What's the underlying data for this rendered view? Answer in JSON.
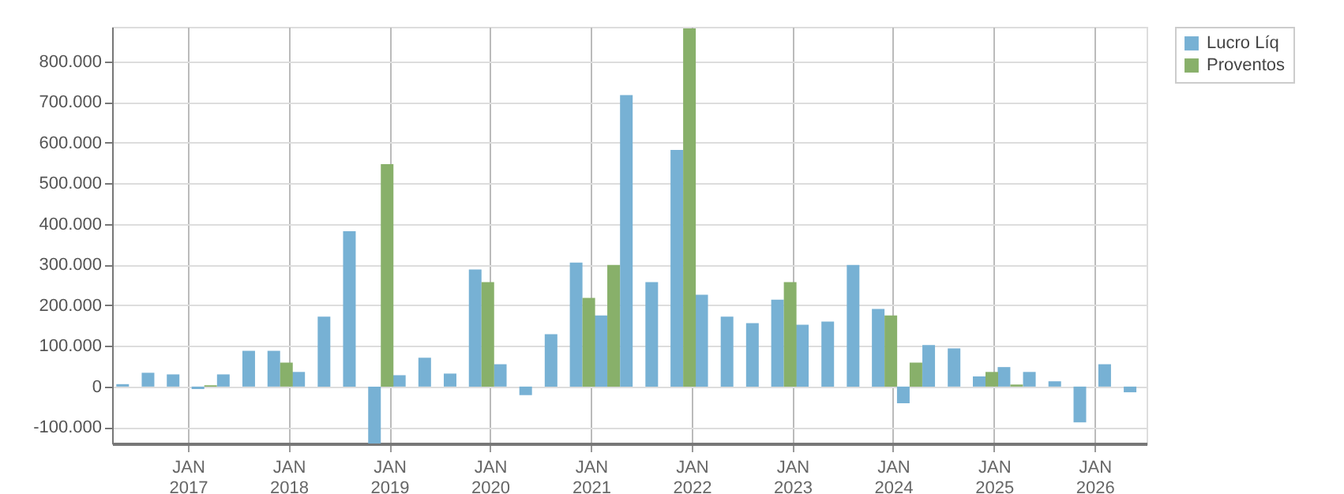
{
  "chart_data": {
    "type": "bar",
    "x": [
      "2016-06",
      "2016-09",
      "2016-12",
      "2017-03",
      "2017-06",
      "2017-09",
      "2017-12",
      "2018-03",
      "2018-06",
      "2018-09",
      "2018-12",
      "2019-03",
      "2019-06",
      "2019-09",
      "2019-12",
      "2020-03",
      "2020-06",
      "2020-09",
      "2020-12",
      "2021-03",
      "2021-06",
      "2021-09",
      "2021-12",
      "2022-03",
      "2022-06",
      "2022-09",
      "2022-12",
      "2023-03",
      "2023-06",
      "2023-09",
      "2023-12",
      "2024-03",
      "2024-06",
      "2024-09",
      "2024-12",
      "2025-03",
      "2025-06",
      "2025-09",
      "2025-12",
      "2026-03",
      "2026-06"
    ],
    "series": [
      {
        "name": "Lucro Líq",
        "color": "#77b1d4",
        "values": [
          6000,
          34000,
          30000,
          -6000,
          30000,
          88000,
          88000,
          36000,
          172000,
          382000,
          -140000,
          28000,
          71000,
          32000,
          288000,
          55000,
          -21000,
          129000,
          305000,
          175000,
          717000,
          257000,
          582000,
          226000,
          172000,
          156000,
          214000,
          152000,
          160000,
          299000,
          191000,
          -41000,
          102000,
          94000,
          25000,
          48000,
          36000,
          13000,
          -88000,
          55000,
          -14000
        ]
      },
      {
        "name": "Proventos",
        "color": "#88b06a",
        "values": [
          0,
          0,
          0,
          3000,
          0,
          0,
          59000,
          0,
          0,
          0,
          547000,
          0,
          0,
          0,
          257000,
          0,
          0,
          0,
          218000,
          299000,
          0,
          0,
          881000,
          0,
          0,
          0,
          257000,
          0,
          0,
          0,
          175000,
          59000,
          0,
          0,
          36000,
          5000,
          0,
          0,
          0,
          0,
          0
        ]
      }
    ],
    "xlim": [
      "2016-04-01",
      "2026-07-08"
    ],
    "xticks": [
      {
        "value": "2017-01-01",
        "label": "JAN 2017"
      },
      {
        "value": "2018-01-01",
        "label": "JAN 2018"
      },
      {
        "value": "2019-01-01",
        "label": "JAN 2019"
      },
      {
        "value": "2020-01-01",
        "label": "JAN 2020"
      },
      {
        "value": "2021-01-01",
        "label": "JAN 2021"
      },
      {
        "value": "2022-01-01",
        "label": "JAN 2022"
      },
      {
        "value": "2023-01-01",
        "label": "JAN 2023"
      },
      {
        "value": "2024-01-01",
        "label": "JAN 2024"
      },
      {
        "value": "2025-01-01",
        "label": "JAN 2025"
      },
      {
        "value": "2026-01-01",
        "label": "JAN 2026"
      }
    ],
    "ylim": [
      -140000,
      885000
    ],
    "yticks": [
      {
        "value": -100000,
        "label": "-100.000"
      },
      {
        "value": 0,
        "label": "0"
      },
      {
        "value": 100000,
        "label": "100.000"
      },
      {
        "value": 200000,
        "label": "200.000"
      },
      {
        "value": 300000,
        "label": "300.000"
      },
      {
        "value": 400000,
        "label": "400.000"
      },
      {
        "value": 500000,
        "label": "500.000"
      },
      {
        "value": 600000,
        "label": "600.000"
      },
      {
        "value": 700000,
        "label": "700.000"
      },
      {
        "value": 800000,
        "label": "800.000"
      }
    ],
    "grid": true,
    "legend": "top right"
  }
}
